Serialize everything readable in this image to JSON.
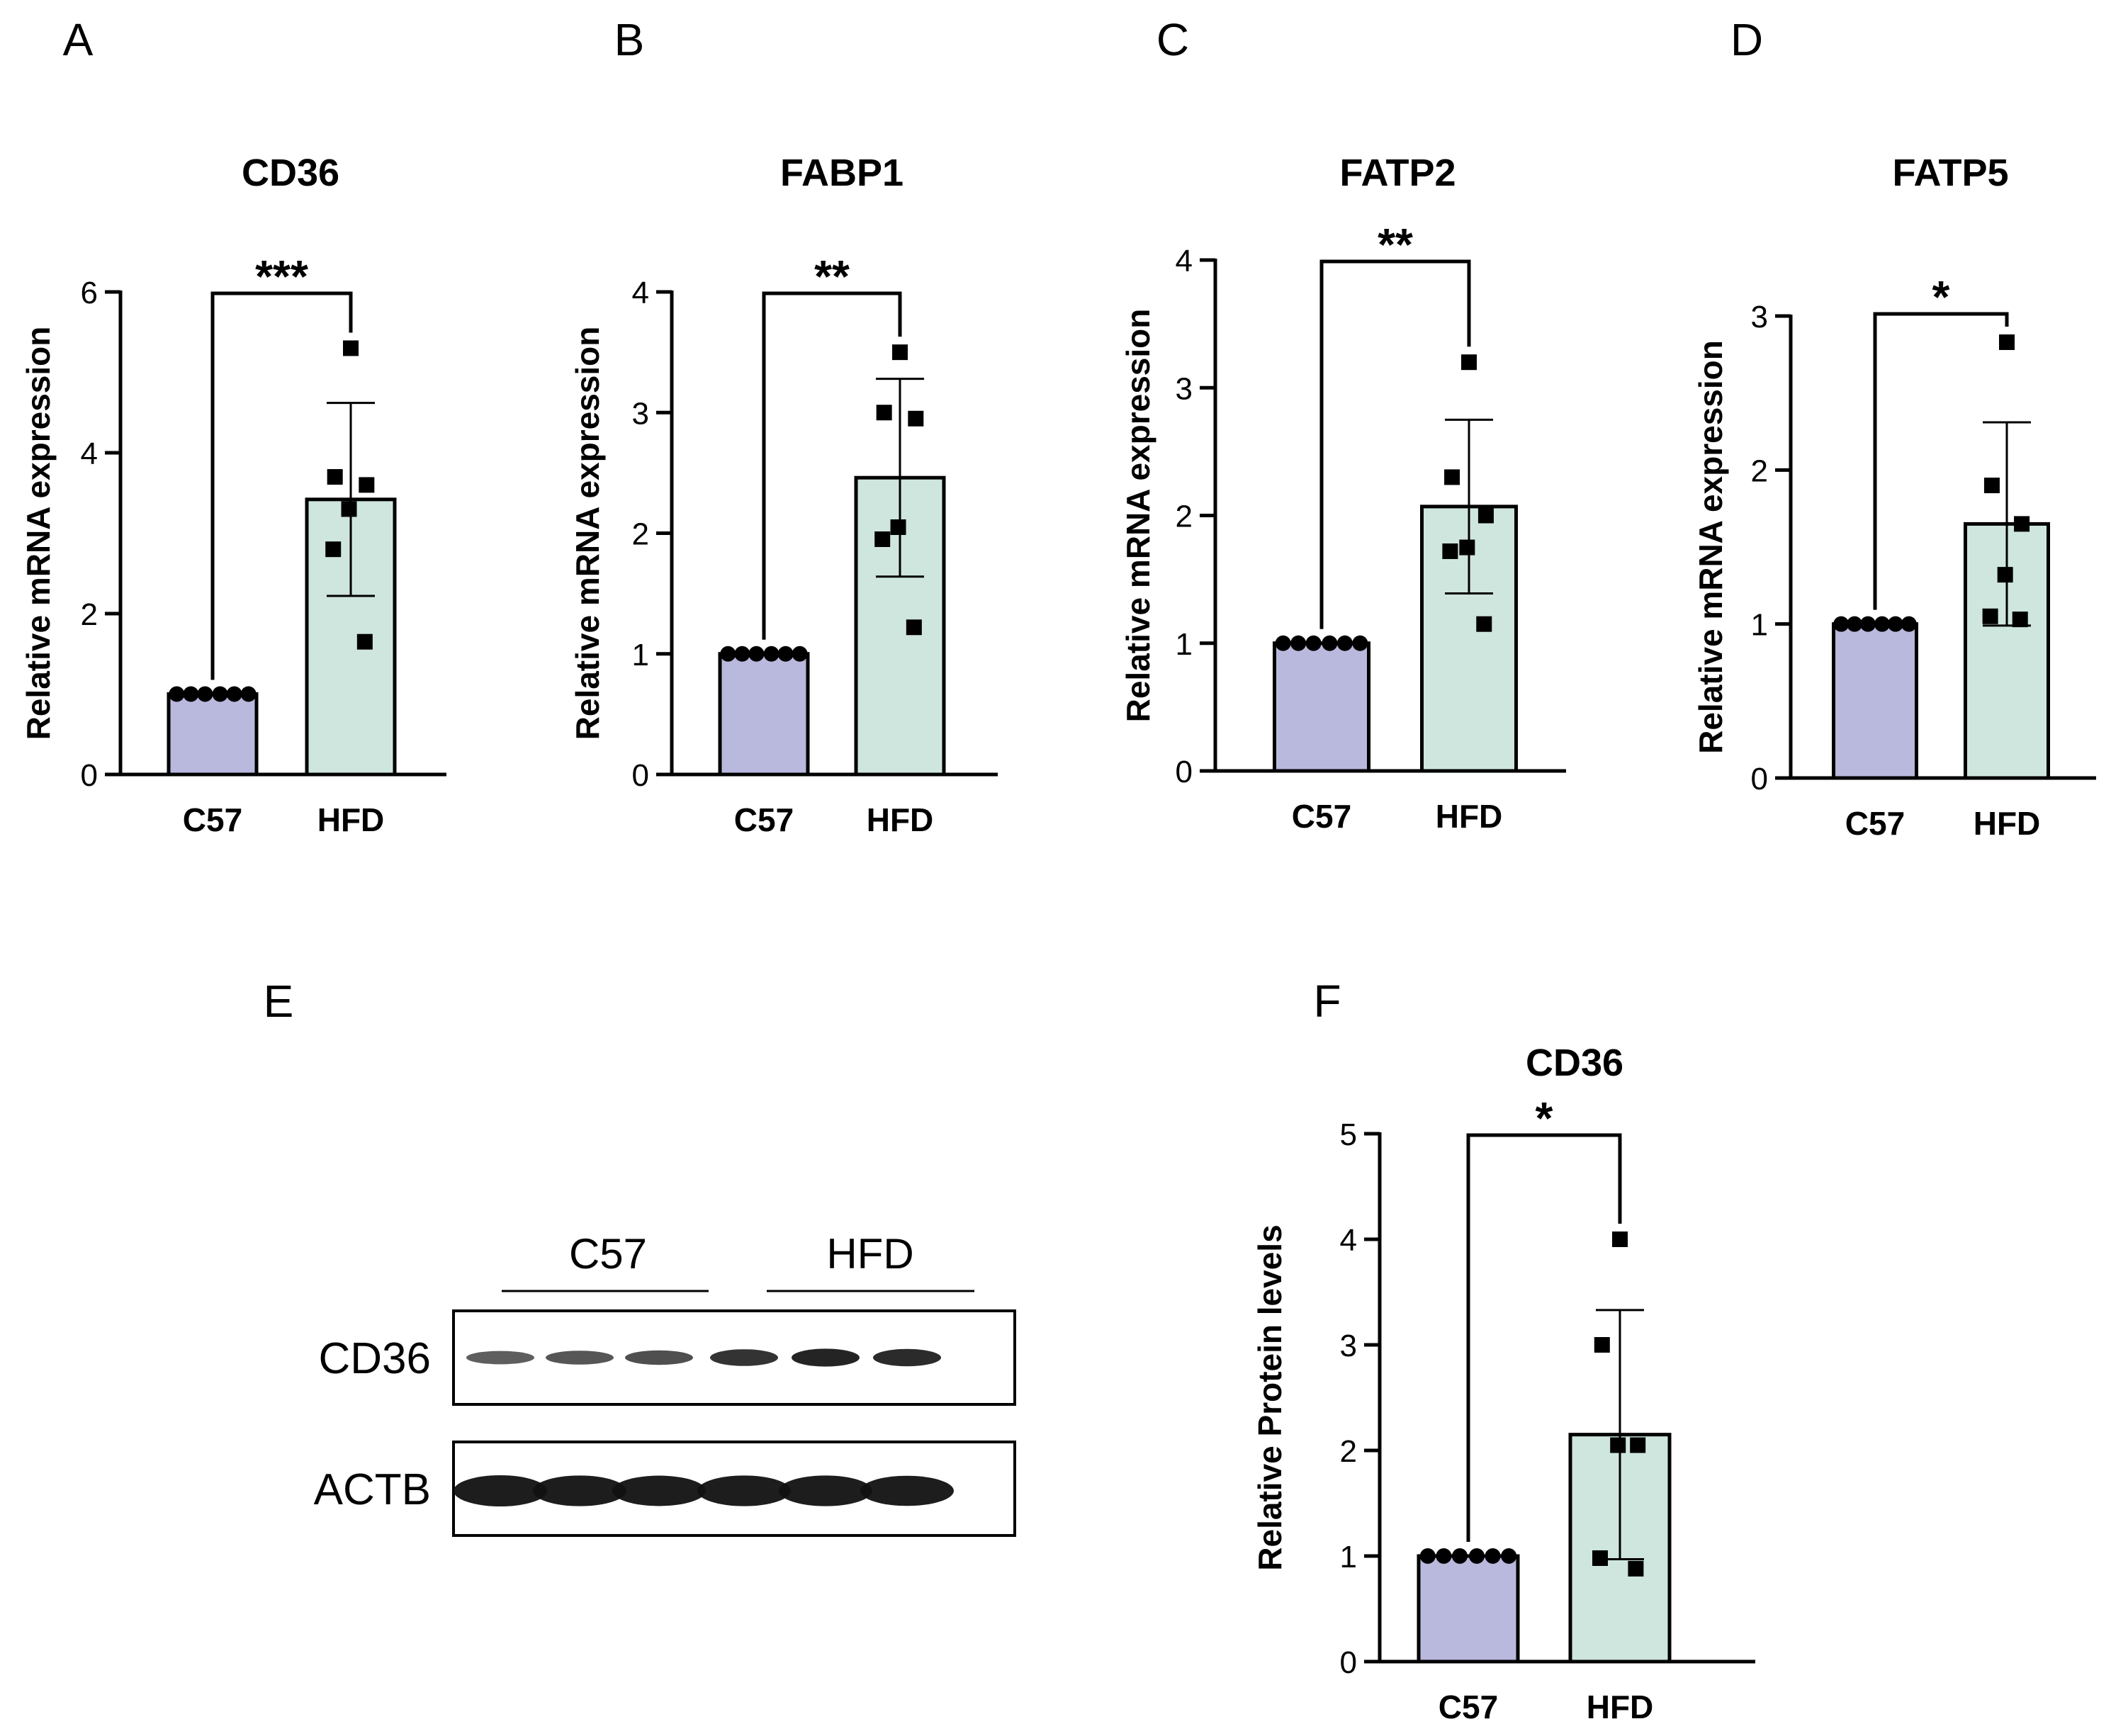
{
  "colors": {
    "c57_fill": "#b9b8dd",
    "hfd_fill": "#cfe6de",
    "stroke": "#000000",
    "band": "#111111"
  },
  "chart_data": [
    {
      "id": "A",
      "type": "bar",
      "panel_label": "A",
      "title": "CD36",
      "ylabel": "Relative mRNA expression",
      "xlabel": "",
      "ylim": [
        0,
        6
      ],
      "yticks": [
        0,
        2,
        4,
        6
      ],
      "categories": [
        "C57",
        "HFD"
      ],
      "means": [
        1.0,
        3.42
      ],
      "sd": [
        0,
        1.2
      ],
      "points": [
        [
          1,
          1,
          1,
          1,
          1,
          1
        ],
        [
          5.3,
          3.7,
          3.6,
          3.3,
          2.8,
          1.65
        ]
      ],
      "significance": "***"
    },
    {
      "id": "B",
      "type": "bar",
      "panel_label": "B",
      "title": "FABP1",
      "ylabel": "Relative mRNA expression",
      "xlabel": "",
      "ylim": [
        0,
        4
      ],
      "yticks": [
        0,
        1,
        2,
        3,
        4
      ],
      "categories": [
        "C57",
        "HFD"
      ],
      "means": [
        1.0,
        2.46
      ],
      "sd": [
        0,
        0.82
      ],
      "points": [
        [
          1,
          1,
          1,
          1,
          1,
          1
        ],
        [
          3.5,
          3.0,
          2.95,
          2.05,
          1.95,
          1.22
        ]
      ],
      "significance": "**"
    },
    {
      "id": "C",
      "type": "bar",
      "panel_label": "C",
      "title": "FATP2",
      "ylabel": "Relative mRNA expression",
      "xlabel": "",
      "ylim": [
        0,
        4
      ],
      "yticks": [
        0,
        1,
        2,
        3,
        4
      ],
      "categories": [
        "C57",
        "HFD"
      ],
      "means": [
        1.0,
        2.07
      ],
      "sd": [
        0,
        0.68
      ],
      "points": [
        [
          1,
          1,
          1,
          1,
          1,
          1
        ],
        [
          3.2,
          2.3,
          2.0,
          1.75,
          1.72,
          1.15
        ]
      ],
      "significance": "**"
    },
    {
      "id": "D",
      "type": "bar",
      "panel_label": "D",
      "title": "FATP5",
      "ylabel": "Relative mRNA expression",
      "xlabel": "",
      "ylim": [
        0,
        3
      ],
      "yticks": [
        0,
        1,
        2,
        3
      ],
      "categories": [
        "C57",
        "HFD"
      ],
      "means": [
        1.0,
        1.65
      ],
      "sd": [
        0,
        0.66
      ],
      "points": [
        [
          1,
          1,
          1,
          1,
          1,
          1
        ],
        [
          2.83,
          1.9,
          1.65,
          1.32,
          1.05,
          1.03
        ]
      ],
      "significance": "*"
    },
    {
      "id": "F",
      "type": "bar",
      "panel_label": "F",
      "title": "CD36",
      "ylabel": "Relative Protein levels",
      "xlabel": "",
      "ylim": [
        0,
        5
      ],
      "yticks": [
        0,
        1,
        2,
        3,
        4,
        5
      ],
      "categories": [
        "C57",
        "HFD"
      ],
      "means": [
        1.0,
        2.15
      ],
      "sd": [
        0,
        1.18
      ],
      "points": [
        [
          1,
          1,
          1,
          1,
          1,
          1
        ],
        [
          4.0,
          3.0,
          2.05,
          2.05,
          0.98,
          0.88
        ]
      ],
      "significance": "*"
    }
  ],
  "blot": {
    "panel_label": "E",
    "groups": [
      "C57",
      "HFD"
    ],
    "rows": [
      {
        "label": "CD36",
        "intensities": [
          0.55,
          0.6,
          0.65,
          0.85,
          0.95,
          0.9
        ]
      },
      {
        "label": "ACTB",
        "intensities": [
          1.0,
          0.95,
          0.92,
          0.95,
          0.95,
          0.9
        ]
      }
    ]
  }
}
